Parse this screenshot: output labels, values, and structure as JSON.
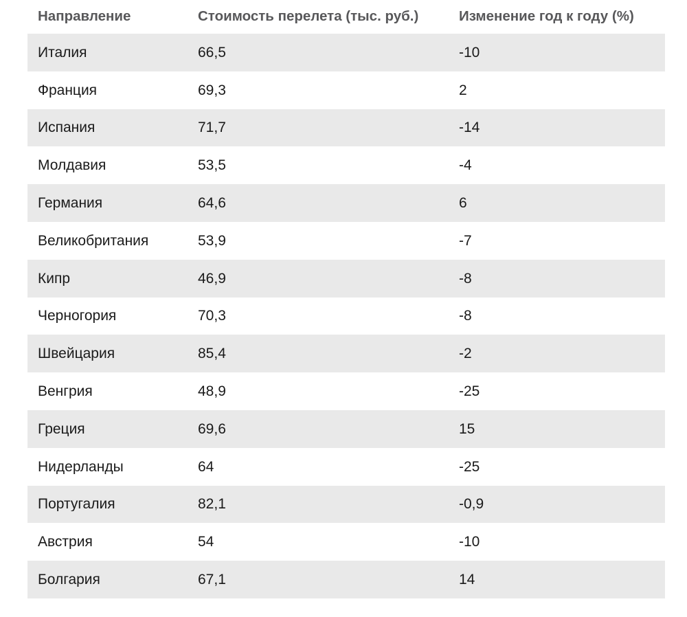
{
  "table": {
    "columns": [
      "Направление",
      "Стоимость перелета (тыс. руб.)",
      "Изменение год к году (%)"
    ],
    "rows": [
      {
        "destination": "Италия",
        "cost": "66,5",
        "change": "-10"
      },
      {
        "destination": "Франция",
        "cost": "69,3",
        "change": "2"
      },
      {
        "destination": "Испания",
        "cost": "71,7",
        "change": "-14"
      },
      {
        "destination": "Молдавия",
        "cost": "53,5",
        "change": "-4"
      },
      {
        "destination": "Германия",
        "cost": "64,6",
        "change": "6"
      },
      {
        "destination": "Великобритания",
        "cost": "53,9",
        "change": "-7"
      },
      {
        "destination": "Кипр",
        "cost": "46,9",
        "change": "-8"
      },
      {
        "destination": "Черногория",
        "cost": "70,3",
        "change": "-8"
      },
      {
        "destination": "Швейцария",
        "cost": "85,4",
        "change": "-2"
      },
      {
        "destination": "Венгрия",
        "cost": "48,9",
        "change": "-25"
      },
      {
        "destination": "Греция",
        "cost": "69,6",
        "change": "15"
      },
      {
        "destination": "Нидерланды",
        "cost": "64",
        "change": "-25"
      },
      {
        "destination": "Португалия",
        "cost": "82,1",
        "change": "-0,9"
      },
      {
        "destination": "Австрия",
        "cost": "54",
        "change": "-10"
      },
      {
        "destination": "Болгария",
        "cost": "67,1",
        "change": "14"
      }
    ]
  },
  "colors": {
    "stripe": "#e9e9e9",
    "header_text": "#58585a",
    "body_text": "#1a1a1a",
    "background": "#ffffff"
  },
  "chart_data": {
    "type": "table",
    "title": "",
    "columns": [
      "Направление",
      "Стоимость перелета (тыс. руб.)",
      "Изменение год к году (%)"
    ],
    "categories": [
      "Италия",
      "Франция",
      "Испания",
      "Молдавия",
      "Германия",
      "Великобритания",
      "Кипр",
      "Черногория",
      "Швейцария",
      "Венгрия",
      "Греция",
      "Нидерланды",
      "Португалия",
      "Австрия",
      "Болгария"
    ],
    "series": [
      {
        "name": "Стоимость перелета (тыс. руб.)",
        "values": [
          66.5,
          69.3,
          71.7,
          53.5,
          64.6,
          53.9,
          46.9,
          70.3,
          85.4,
          48.9,
          69.6,
          64,
          82.1,
          54,
          67.1
        ]
      },
      {
        "name": "Изменение год к году (%)",
        "values": [
          -10,
          2,
          -14,
          -4,
          6,
          -7,
          -8,
          -8,
          -2,
          -25,
          15,
          -25,
          -0.9,
          -10,
          14
        ]
      }
    ],
    "layout_hints": {
      "row_striping": "alternating, first data row shaded",
      "grid": false,
      "legend": false
    }
  }
}
